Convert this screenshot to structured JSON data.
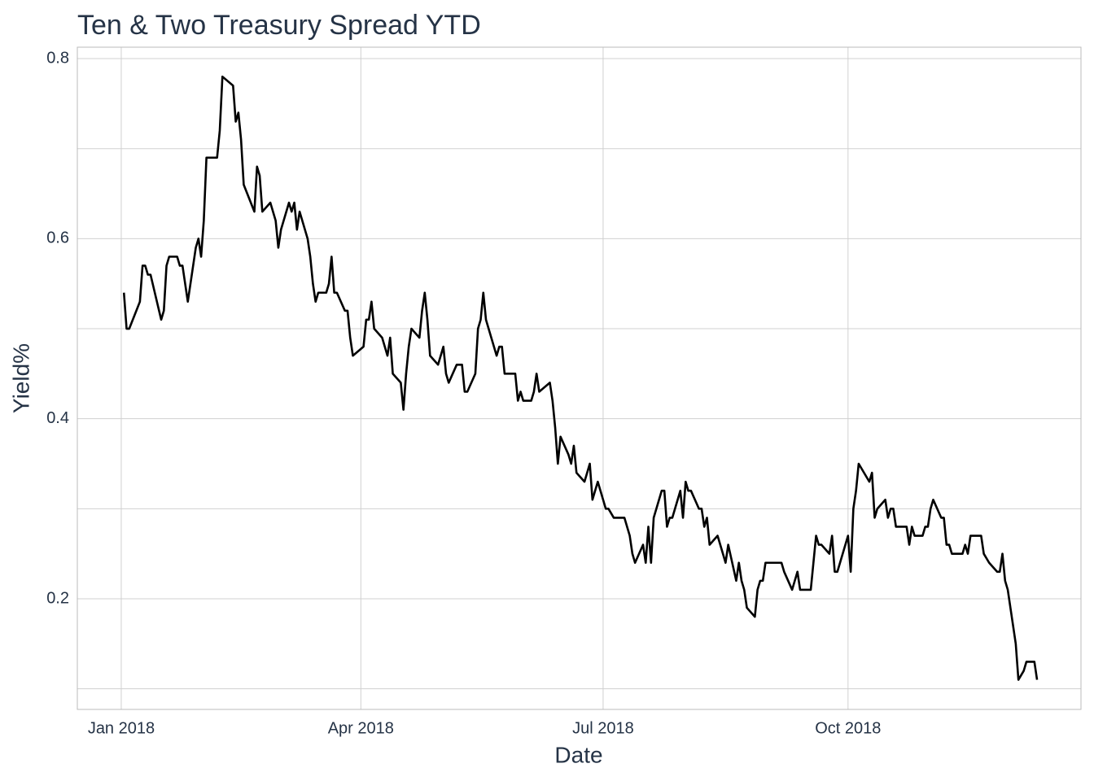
{
  "chart_data": {
    "type": "line",
    "title": "Ten & Two Treasury Spread YTD",
    "x_label": "Date",
    "y_label": "Yield%",
    "color": "#000000",
    "grid": true,
    "x": [
      1,
      2,
      3,
      7,
      8,
      9,
      10,
      11,
      15,
      16,
      17,
      18,
      21,
      22,
      23,
      25,
      28,
      29,
      30,
      31,
      32,
      36,
      37,
      38,
      42,
      43,
      44,
      45,
      46,
      50,
      51,
      52,
      53,
      56,
      58,
      59,
      60,
      63,
      64,
      65,
      66,
      67,
      70,
      71,
      72,
      73,
      74,
      77,
      78,
      79,
      80,
      81,
      84,
      85,
      86,
      87,
      91,
      92,
      93,
      94,
      95,
      98,
      100,
      101,
      102,
      105,
      106,
      107,
      108,
      109,
      112,
      113,
      114,
      115,
      116,
      119,
      120,
      121,
      122,
      123,
      126,
      128,
      129,
      130,
      133,
      134,
      135,
      136,
      137,
      141,
      142,
      143,
      144,
      148,
      149,
      150,
      151,
      154,
      155,
      156,
      157,
      161,
      162,
      163,
      164,
      165,
      168,
      169,
      170,
      171,
      174,
      175,
      176,
      177,
      179,
      182,
      183,
      185,
      189,
      191,
      192,
      193,
      196,
      197,
      198,
      199,
      200,
      203,
      204,
      205,
      206,
      207,
      210,
      211,
      212,
      213,
      214,
      217,
      218,
      219,
      220,
      221,
      224,
      226,
      227,
      228,
      231,
      232,
      233,
      234,
      235,
      238,
      239,
      240,
      241,
      242,
      248,
      249,
      252,
      254,
      255,
      259,
      261,
      262,
      263,
      266,
      267,
      268,
      269,
      273,
      274,
      275,
      276,
      277,
      281,
      282,
      283,
      284,
      287,
      288,
      289,
      290,
      291,
      294,
      295,
      296,
      297,
      298,
      301,
      302,
      303,
      304,
      305,
      308,
      309,
      310,
      311,
      312,
      316,
      317,
      318,
      319,
      323,
      324,
      326,
      329,
      330,
      331,
      332,
      333,
      336,
      337,
      339,
      340,
      343,
      344
    ],
    "values": [
      0.54,
      0.5,
      0.5,
      0.53,
      0.57,
      0.57,
      0.56,
      0.56,
      0.51,
      0.52,
      0.57,
      0.58,
      0.58,
      0.57,
      0.57,
      0.53,
      0.59,
      0.6,
      0.58,
      0.62,
      0.69,
      0.69,
      0.72,
      0.78,
      0.77,
      0.73,
      0.74,
      0.71,
      0.66,
      0.63,
      0.68,
      0.67,
      0.63,
      0.64,
      0.62,
      0.59,
      0.61,
      0.64,
      0.63,
      0.64,
      0.61,
      0.63,
      0.6,
      0.58,
      0.55,
      0.53,
      0.54,
      0.54,
      0.55,
      0.58,
      0.54,
      0.54,
      0.52,
      0.52,
      0.49,
      0.47,
      0.48,
      0.51,
      0.51,
      0.53,
      0.5,
      0.49,
      0.47,
      0.49,
      0.45,
      0.44,
      0.41,
      0.45,
      0.48,
      0.5,
      0.49,
      0.52,
      0.54,
      0.51,
      0.47,
      0.46,
      0.47,
      0.48,
      0.45,
      0.44,
      0.46,
      0.46,
      0.43,
      0.43,
      0.45,
      0.5,
      0.51,
      0.54,
      0.51,
      0.47,
      0.48,
      0.48,
      0.45,
      0.45,
      0.42,
      0.43,
      0.42,
      0.42,
      0.43,
      0.45,
      0.43,
      0.44,
      0.42,
      0.39,
      0.35,
      0.38,
      0.36,
      0.35,
      0.37,
      0.34,
      0.33,
      0.34,
      0.35,
      0.31,
      0.33,
      0.3,
      0.3,
      0.29,
      0.29,
      0.27,
      0.25,
      0.24,
      0.26,
      0.24,
      0.28,
      0.24,
      0.29,
      0.32,
      0.32,
      0.28,
      0.29,
      0.29,
      0.32,
      0.29,
      0.33,
      0.32,
      0.32,
      0.3,
      0.3,
      0.28,
      0.29,
      0.26,
      0.27,
      0.25,
      0.24,
      0.26,
      0.22,
      0.24,
      0.22,
      0.21,
      0.19,
      0.18,
      0.21,
      0.22,
      0.22,
      0.24,
      0.24,
      0.23,
      0.21,
      0.23,
      0.21,
      0.21,
      0.27,
      0.26,
      0.26,
      0.25,
      0.27,
      0.23,
      0.23,
      0.27,
      0.23,
      0.3,
      0.32,
      0.35,
      0.33,
      0.34,
      0.29,
      0.3,
      0.31,
      0.29,
      0.3,
      0.3,
      0.28,
      0.28,
      0.28,
      0.26,
      0.28,
      0.27,
      0.27,
      0.28,
      0.28,
      0.3,
      0.31,
      0.29,
      0.29,
      0.26,
      0.26,
      0.25,
      0.25,
      0.26,
      0.25,
      0.27,
      0.27,
      0.25,
      0.24,
      0.23,
      0.23,
      0.25,
      0.22,
      0.21,
      0.15,
      0.11,
      0.12,
      0.13,
      0.13,
      0.11
    ],
    "xlim": [
      -16.5,
      360.5
    ],
    "xticks": [
      {
        "value": 0,
        "label": "Jan 2018"
      },
      {
        "value": 90,
        "label": "Apr 2018"
      },
      {
        "value": 181,
        "label": "Jul 2018"
      },
      {
        "value": 273,
        "label": "Oct 2018"
      }
    ],
    "ylim": [
      0.0771,
      0.8127
    ],
    "yticks": [
      0.2,
      0.4,
      0.6,
      0.8
    ],
    "yminor": [
      0.1,
      0.3,
      0.5,
      0.7
    ]
  }
}
